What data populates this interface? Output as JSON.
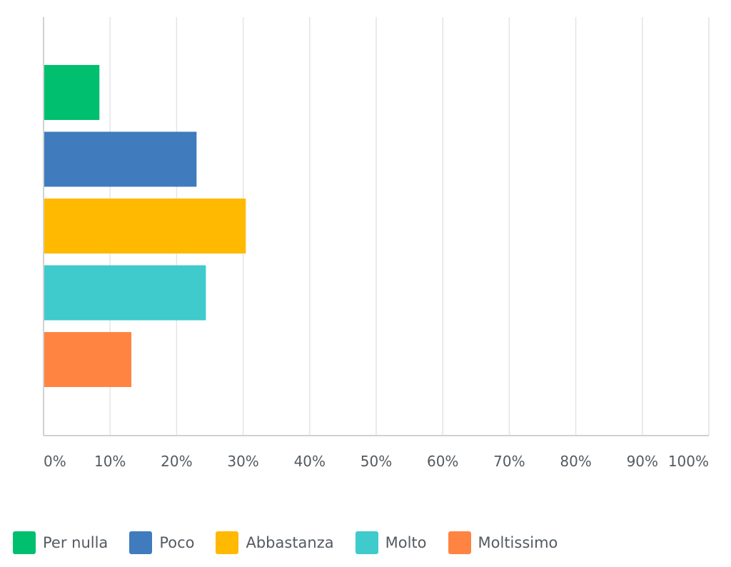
{
  "chart_data": {
    "type": "bar",
    "orientation": "horizontal",
    "categories": [
      "Per nulla",
      "Poco",
      "Abbastanza",
      "Molto",
      "Moltissimo"
    ],
    "values": [
      8.4,
      23.0,
      30.4,
      24.4,
      13.2
    ],
    "colors": [
      "#00bf6f",
      "#3f7bbd",
      "#ffb900",
      "#3fcacc",
      "#ff8442"
    ],
    "xlim": [
      0,
      100
    ],
    "x_ticks": [
      "0%",
      "10%",
      "20%",
      "30%",
      "40%",
      "50%",
      "60%",
      "70%",
      "80%",
      "90%",
      "100%"
    ],
    "grid": true,
    "legend_position": "bottom-left"
  }
}
